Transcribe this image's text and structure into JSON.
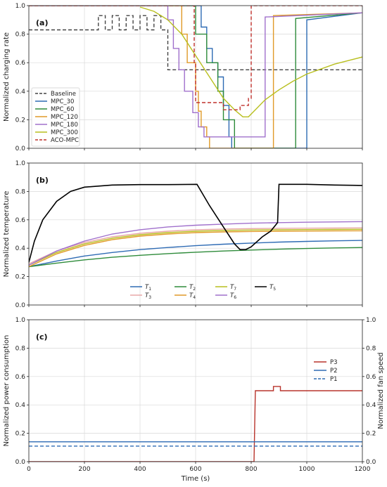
{
  "chart_data": [
    {
      "type": "line",
      "panel_label": "(a)",
      "xlabel": "",
      "ylabel": "Normalized charging rate",
      "xlim": [
        0,
        1200
      ],
      "ylim": [
        0,
        1.0
      ],
      "yticks": [
        "0.0",
        "0.2",
        "0.4",
        "0.6",
        "0.8",
        "1.0"
      ],
      "grid": true,
      "legend": "bottom-left",
      "series": [
        {
          "name": "Baseline",
          "color": "#444444",
          "dash": true,
          "points": [
            [
              0,
              0.83
            ],
            [
              250,
              0.83
            ],
            [
              250,
              0.93
            ],
            [
              275,
              0.93
            ],
            [
              275,
              0.83
            ],
            [
              300,
              0.83
            ],
            [
              300,
              0.93
            ],
            [
              325,
              0.93
            ],
            [
              325,
              0.83
            ],
            [
              350,
              0.83
            ],
            [
              350,
              0.93
            ],
            [
              375,
              0.93
            ],
            [
              375,
              0.83
            ],
            [
              400,
              0.83
            ],
            [
              400,
              0.93
            ],
            [
              425,
              0.93
            ],
            [
              425,
              0.83
            ],
            [
              450,
              0.83
            ],
            [
              450,
              0.93
            ],
            [
              475,
              0.93
            ],
            [
              475,
              0.83
            ],
            [
              500,
              0.83
            ],
            [
              500,
              0.55
            ],
            [
              1200,
              0.55
            ]
          ]
        },
        {
          "name": "MPC_30",
          "color": "#2e6bb4",
          "points": [
            [
              0,
              1.0
            ],
            [
              620,
              1.0
            ],
            [
              620,
              0.85
            ],
            [
              640,
              0.85
            ],
            [
              640,
              0.7
            ],
            [
              660,
              0.7
            ],
            [
              660,
              0.6
            ],
            [
              680,
              0.6
            ],
            [
              680,
              0.5
            ],
            [
              700,
              0.5
            ],
            [
              700,
              0.3
            ],
            [
              720,
              0.3
            ],
            [
              720,
              0.08
            ],
            [
              730,
              0.08
            ],
            [
              730,
              0.0
            ],
            [
              1000,
              0.0
            ],
            [
              1000,
              0.9
            ],
            [
              1200,
              0.95
            ]
          ]
        },
        {
          "name": "MPC_60",
          "color": "#2e8b3a",
          "points": [
            [
              0,
              1.0
            ],
            [
              600,
              1.0
            ],
            [
              600,
              0.8
            ],
            [
              640,
              0.8
            ],
            [
              640,
              0.6
            ],
            [
              680,
              0.6
            ],
            [
              680,
              0.4
            ],
            [
              700,
              0.4
            ],
            [
              700,
              0.2
            ],
            [
              740,
              0.2
            ],
            [
              740,
              0.0
            ],
            [
              960,
              0.0
            ],
            [
              960,
              0.91
            ],
            [
              1200,
              0.95
            ]
          ]
        },
        {
          "name": "MPC_120",
          "color": "#e09a28",
          "points": [
            [
              0,
              1.0
            ],
            [
              550,
              1.0
            ],
            [
              550,
              0.8
            ],
            [
              570,
              0.8
            ],
            [
              570,
              0.6
            ],
            [
              600,
              0.6
            ],
            [
              600,
              0.4
            ],
            [
              610,
              0.4
            ],
            [
              610,
              0.26
            ],
            [
              620,
              0.26
            ],
            [
              620,
              0.15
            ],
            [
              640,
              0.15
            ],
            [
              640,
              0.08
            ],
            [
              650,
              0.08
            ],
            [
              650,
              0.0
            ],
            [
              880,
              0.0
            ],
            [
              880,
              0.93
            ],
            [
              1200,
              0.95
            ]
          ]
        },
        {
          "name": "MPC_180",
          "color": "#a070cc",
          "points": [
            [
              0,
              1.0
            ],
            [
              500,
              1.0
            ],
            [
              500,
              0.9
            ],
            [
              520,
              0.9
            ],
            [
              520,
              0.7
            ],
            [
              540,
              0.7
            ],
            [
              540,
              0.55
            ],
            [
              560,
              0.55
            ],
            [
              560,
              0.4
            ],
            [
              590,
              0.4
            ],
            [
              590,
              0.25
            ],
            [
              610,
              0.25
            ],
            [
              610,
              0.15
            ],
            [
              630,
              0.15
            ],
            [
              630,
              0.08
            ],
            [
              850,
              0.08
            ],
            [
              850,
              0.92
            ],
            [
              1200,
              0.95
            ]
          ]
        },
        {
          "name": "MPC_300",
          "color": "#b8bf1e",
          "points": [
            [
              400,
              0.99
            ],
            [
              450,
              0.96
            ],
            [
              500,
              0.9
            ],
            [
              550,
              0.8
            ],
            [
              600,
              0.65
            ],
            [
              650,
              0.5
            ],
            [
              700,
              0.35
            ],
            [
              740,
              0.27
            ],
            [
              770,
              0.22
            ],
            [
              790,
              0.22
            ],
            [
              800,
              0.24
            ],
            [
              850,
              0.34
            ],
            [
              900,
              0.41
            ],
            [
              950,
              0.47
            ],
            [
              1000,
              0.52
            ],
            [
              1100,
              0.59
            ],
            [
              1200,
              0.64
            ]
          ]
        },
        {
          "name": "ACO-MPC",
          "color": "#c0302c",
          "dash": true,
          "points": [
            [
              0,
              1.0
            ],
            [
              595,
              1.0
            ],
            [
              595,
              0.6
            ],
            [
              600,
              0.6
            ],
            [
              600,
              0.32
            ],
            [
              700,
              0.32
            ],
            [
              700,
              0.27
            ],
            [
              760,
              0.27
            ],
            [
              760,
              0.3
            ],
            [
              790,
              0.3
            ],
            [
              790,
              0.35
            ],
            [
              800,
              0.35
            ],
            [
              800,
              0.42
            ],
            [
              800,
              1.0
            ],
            [
              1200,
              1.0
            ]
          ]
        }
      ]
    },
    {
      "type": "line",
      "panel_label": "(b)",
      "xlabel": "",
      "ylabel": "Normalized temperature",
      "xlim": [
        0,
        1200
      ],
      "ylim": [
        0,
        1.0
      ],
      "yticks": [
        "0.0",
        "0.2",
        "0.4",
        "0.6",
        "0.8",
        "1.0"
      ],
      "grid": true,
      "legend": "bottom-center",
      "series": [
        {
          "name": "T1",
          "label_main": "T",
          "label_sub": "1",
          "color": "#2e6bb4",
          "points": [
            [
              0,
              0.27
            ],
            [
              100,
              0.31
            ],
            [
              200,
              0.345
            ],
            [
              300,
              0.37
            ],
            [
              400,
              0.39
            ],
            [
              500,
              0.405
            ],
            [
              600,
              0.418
            ],
            [
              700,
              0.428
            ],
            [
              800,
              0.436
            ],
            [
              900,
              0.443
            ],
            [
              1000,
              0.448
            ],
            [
              1100,
              0.452
            ],
            [
              1200,
              0.455
            ]
          ]
        },
        {
          "name": "T3",
          "label_main": "T",
          "label_sub": "3",
          "color": "#e8a8a8",
          "points": [
            [
              0,
              0.29
            ],
            [
              100,
              0.38
            ],
            [
              200,
              0.44
            ],
            [
              300,
              0.48
            ],
            [
              400,
              0.505
            ],
            [
              500,
              0.52
            ],
            [
              600,
              0.53
            ],
            [
              700,
              0.535
            ],
            [
              800,
              0.538
            ],
            [
              900,
              0.54
            ],
            [
              1000,
              0.541
            ],
            [
              1100,
              0.542
            ],
            [
              1200,
              0.543
            ]
          ]
        },
        {
          "name": "T2",
          "label_main": "T",
          "label_sub": "2",
          "color": "#2e8b3a",
          "points": [
            [
              0,
              0.27
            ],
            [
              100,
              0.295
            ],
            [
              200,
              0.318
            ],
            [
              300,
              0.336
            ],
            [
              400,
              0.35
            ],
            [
              500,
              0.362
            ],
            [
              600,
              0.372
            ],
            [
              700,
              0.38
            ],
            [
              800,
              0.387
            ],
            [
              900,
              0.393
            ],
            [
              1000,
              0.398
            ],
            [
              1100,
              0.402
            ],
            [
              1200,
              0.405
            ]
          ]
        },
        {
          "name": "T4",
          "label_main": "T",
          "label_sub": "4",
          "color": "#e09a28",
          "points": [
            [
              0,
              0.27
            ],
            [
              100,
              0.36
            ],
            [
              200,
              0.42
            ],
            [
              300,
              0.46
            ],
            [
              400,
              0.485
            ],
            [
              500,
              0.5
            ],
            [
              600,
              0.51
            ],
            [
              700,
              0.515
            ],
            [
              800,
              0.518
            ],
            [
              900,
              0.52
            ],
            [
              1000,
              0.521
            ],
            [
              1100,
              0.522
            ],
            [
              1200,
              0.523
            ]
          ]
        },
        {
          "name": "T7",
          "label_main": "T",
          "label_sub": "7",
          "color": "#b8bf1e",
          "points": [
            [
              0,
              0.28
            ],
            [
              100,
              0.37
            ],
            [
              200,
              0.43
            ],
            [
              300,
              0.47
            ],
            [
              400,
              0.495
            ],
            [
              500,
              0.51
            ],
            [
              600,
              0.52
            ],
            [
              700,
              0.525
            ],
            [
              800,
              0.528
            ],
            [
              900,
              0.53
            ],
            [
              1000,
              0.531
            ],
            [
              1100,
              0.532
            ],
            [
              1200,
              0.533
            ]
          ]
        },
        {
          "name": "T6",
          "label_main": "T",
          "label_sub": "6",
          "color": "#a070cc",
          "points": [
            [
              0,
              0.28
            ],
            [
              100,
              0.38
            ],
            [
              200,
              0.45
            ],
            [
              300,
              0.5
            ],
            [
              400,
              0.53
            ],
            [
              500,
              0.55
            ],
            [
              600,
              0.562
            ],
            [
              700,
              0.57
            ],
            [
              800,
              0.576
            ],
            [
              900,
              0.58
            ],
            [
              1000,
              0.583
            ],
            [
              1100,
              0.585
            ],
            [
              1200,
              0.587
            ]
          ]
        },
        {
          "name": "T5",
          "label_main": "T",
          "label_sub": "5",
          "color": "#000000",
          "points": [
            [
              0,
              0.3
            ],
            [
              20,
              0.45
            ],
            [
              50,
              0.6
            ],
            [
              100,
              0.73
            ],
            [
              150,
              0.8
            ],
            [
              200,
              0.83
            ],
            [
              300,
              0.845
            ],
            [
              400,
              0.848
            ],
            [
              500,
              0.848
            ],
            [
              605,
              0.85
            ],
            [
              650,
              0.7
            ],
            [
              700,
              0.55
            ],
            [
              740,
              0.43
            ],
            [
              760,
              0.39
            ],
            [
              780,
              0.39
            ],
            [
              800,
              0.41
            ],
            [
              840,
              0.48
            ],
            [
              870,
              0.52
            ],
            [
              895,
              0.58
            ],
            [
              900,
              0.85
            ],
            [
              1000,
              0.85
            ],
            [
              1100,
              0.845
            ],
            [
              1200,
              0.842
            ]
          ]
        }
      ]
    },
    {
      "type": "line",
      "panel_label": "(c)",
      "xlabel": "Time (s)",
      "ylabel": "Normalized power consumption",
      "ylabel_right": "Normalized fan speed",
      "xlim": [
        0,
        1200
      ],
      "ylim": [
        0,
        1.0
      ],
      "ylim_right": [
        0,
        1.0
      ],
      "xticks": [
        "0",
        "200",
        "400",
        "600",
        "800",
        "1000",
        "1200"
      ],
      "yticks": [
        "0.0",
        "0.2",
        "0.4",
        "0.6",
        "0.8",
        "1.0"
      ],
      "grid": true,
      "legend": "right",
      "series": [
        {
          "name": "P3",
          "color": "#b8332b",
          "points": [
            [
              0,
              0.0
            ],
            [
              810,
              0.0
            ],
            [
              815,
              0.5
            ],
            [
              880,
              0.5
            ],
            [
              880,
              0.53
            ],
            [
              905,
              0.53
            ],
            [
              905,
              0.5
            ],
            [
              1200,
              0.5
            ]
          ]
        },
        {
          "name": "P2",
          "color": "#2e6bb4",
          "points": [
            [
              0,
              0.14
            ],
            [
              1200,
              0.14
            ]
          ]
        },
        {
          "name": "P1",
          "color": "#2e6bb4",
          "dash": true,
          "points": [
            [
              0,
              0.11
            ],
            [
              1200,
              0.11
            ]
          ]
        }
      ]
    }
  ]
}
